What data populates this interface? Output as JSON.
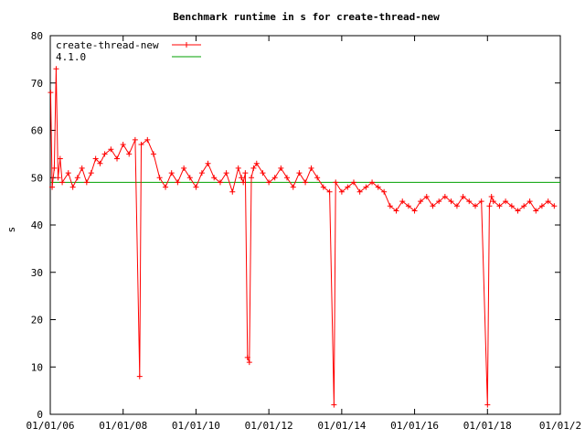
{
  "chart_data": {
    "type": "line",
    "title": "Benchmark runtime in s for create-thread-new",
    "ylabel": "s",
    "xlabel": "",
    "ylim": [
      0,
      80
    ],
    "yticks": [
      0,
      10,
      20,
      30,
      40,
      50,
      60,
      70,
      80
    ],
    "xlim": [
      "2006-01-01",
      "2020-01-01"
    ],
    "xticks": [
      "01/01/06",
      "01/01/08",
      "01/01/10",
      "01/01/12",
      "01/01/14",
      "01/01/16",
      "01/01/18",
      "01/01/2"
    ],
    "grid": false,
    "legend_position": "top-left",
    "colors": {
      "series": "#ff0000",
      "reference": "#00a000",
      "axis": "#000000"
    },
    "series": [
      {
        "name": "create-thread-new",
        "x": [
          "2006-01-05",
          "2006-01-20",
          "2006-02-10",
          "2006-03-01",
          "2006-03-20",
          "2006-04-10",
          "2006-05-01",
          "2006-07-01",
          "2006-08-15",
          "2006-10-01",
          "2006-11-15",
          "2007-01-01",
          "2007-02-15",
          "2007-04-01",
          "2007-05-15",
          "2007-07-01",
          "2007-09-01",
          "2007-11-01",
          "2008-01-01",
          "2008-03-01",
          "2008-05-01",
          "2008-06-15",
          "2008-07-01",
          "2008-09-01",
          "2008-11-01",
          "2009-01-01",
          "2009-03-01",
          "2009-05-01",
          "2009-07-01",
          "2009-09-01",
          "2009-11-01",
          "2010-01-01",
          "2010-03-01",
          "2010-05-01",
          "2010-07-01",
          "2010-09-01",
          "2010-11-01",
          "2011-01-01",
          "2011-03-01",
          "2011-04-01",
          "2011-04-20",
          "2011-05-10",
          "2011-06-01",
          "2011-06-20",
          "2011-07-10",
          "2011-08-01",
          "2011-09-01",
          "2011-11-01",
          "2012-01-01",
          "2012-03-01",
          "2012-05-01",
          "2012-07-01",
          "2012-09-01",
          "2012-11-01",
          "2013-01-01",
          "2013-03-01",
          "2013-05-01",
          "2013-07-01",
          "2013-09-01",
          "2013-10-15",
          "2013-11-01",
          "2014-01-01",
          "2014-03-01",
          "2014-05-01",
          "2014-07-01",
          "2014-09-01",
          "2014-11-01",
          "2015-01-01",
          "2015-03-01",
          "2015-05-01",
          "2015-07-01",
          "2015-09-01",
          "2015-11-01",
          "2016-01-01",
          "2016-03-01",
          "2016-05-01",
          "2016-07-01",
          "2016-09-01",
          "2016-11-01",
          "2017-01-01",
          "2017-03-01",
          "2017-05-01",
          "2017-07-01",
          "2017-09-01",
          "2017-11-01",
          "2018-01-01",
          "2018-01-20",
          "2018-02-10",
          "2018-03-01",
          "2018-05-01",
          "2018-07-01",
          "2018-09-01",
          "2018-11-01",
          "2019-01-01",
          "2019-03-01",
          "2019-05-01",
          "2019-07-01",
          "2019-09-01",
          "2019-11-01"
        ],
        "values": [
          68,
          48,
          52,
          73,
          50,
          54,
          49,
          51,
          48,
          50,
          52,
          49,
          51,
          54,
          53,
          55,
          56,
          54,
          57,
          55,
          58,
          8,
          57,
          58,
          55,
          50,
          48,
          51,
          49,
          52,
          50,
          48,
          51,
          53,
          50,
          49,
          51,
          47,
          52,
          50,
          49,
          51,
          12,
          11,
          50,
          52,
          53,
          51,
          49,
          50,
          52,
          50,
          48,
          51,
          49,
          52,
          50,
          48,
          47,
          2,
          49,
          47,
          48,
          49,
          47,
          48,
          49,
          48,
          47,
          44,
          43,
          45,
          44,
          43,
          45,
          46,
          44,
          45,
          46,
          45,
          44,
          46,
          45,
          44,
          45,
          2,
          44,
          46,
          45,
          44,
          45,
          44,
          43,
          44,
          45,
          43,
          44,
          45,
          44
        ]
      },
      {
        "name": "4.1.0",
        "x": [
          "2006-01-01",
          "2020-01-01"
        ],
        "values": [
          49,
          49
        ]
      }
    ]
  }
}
